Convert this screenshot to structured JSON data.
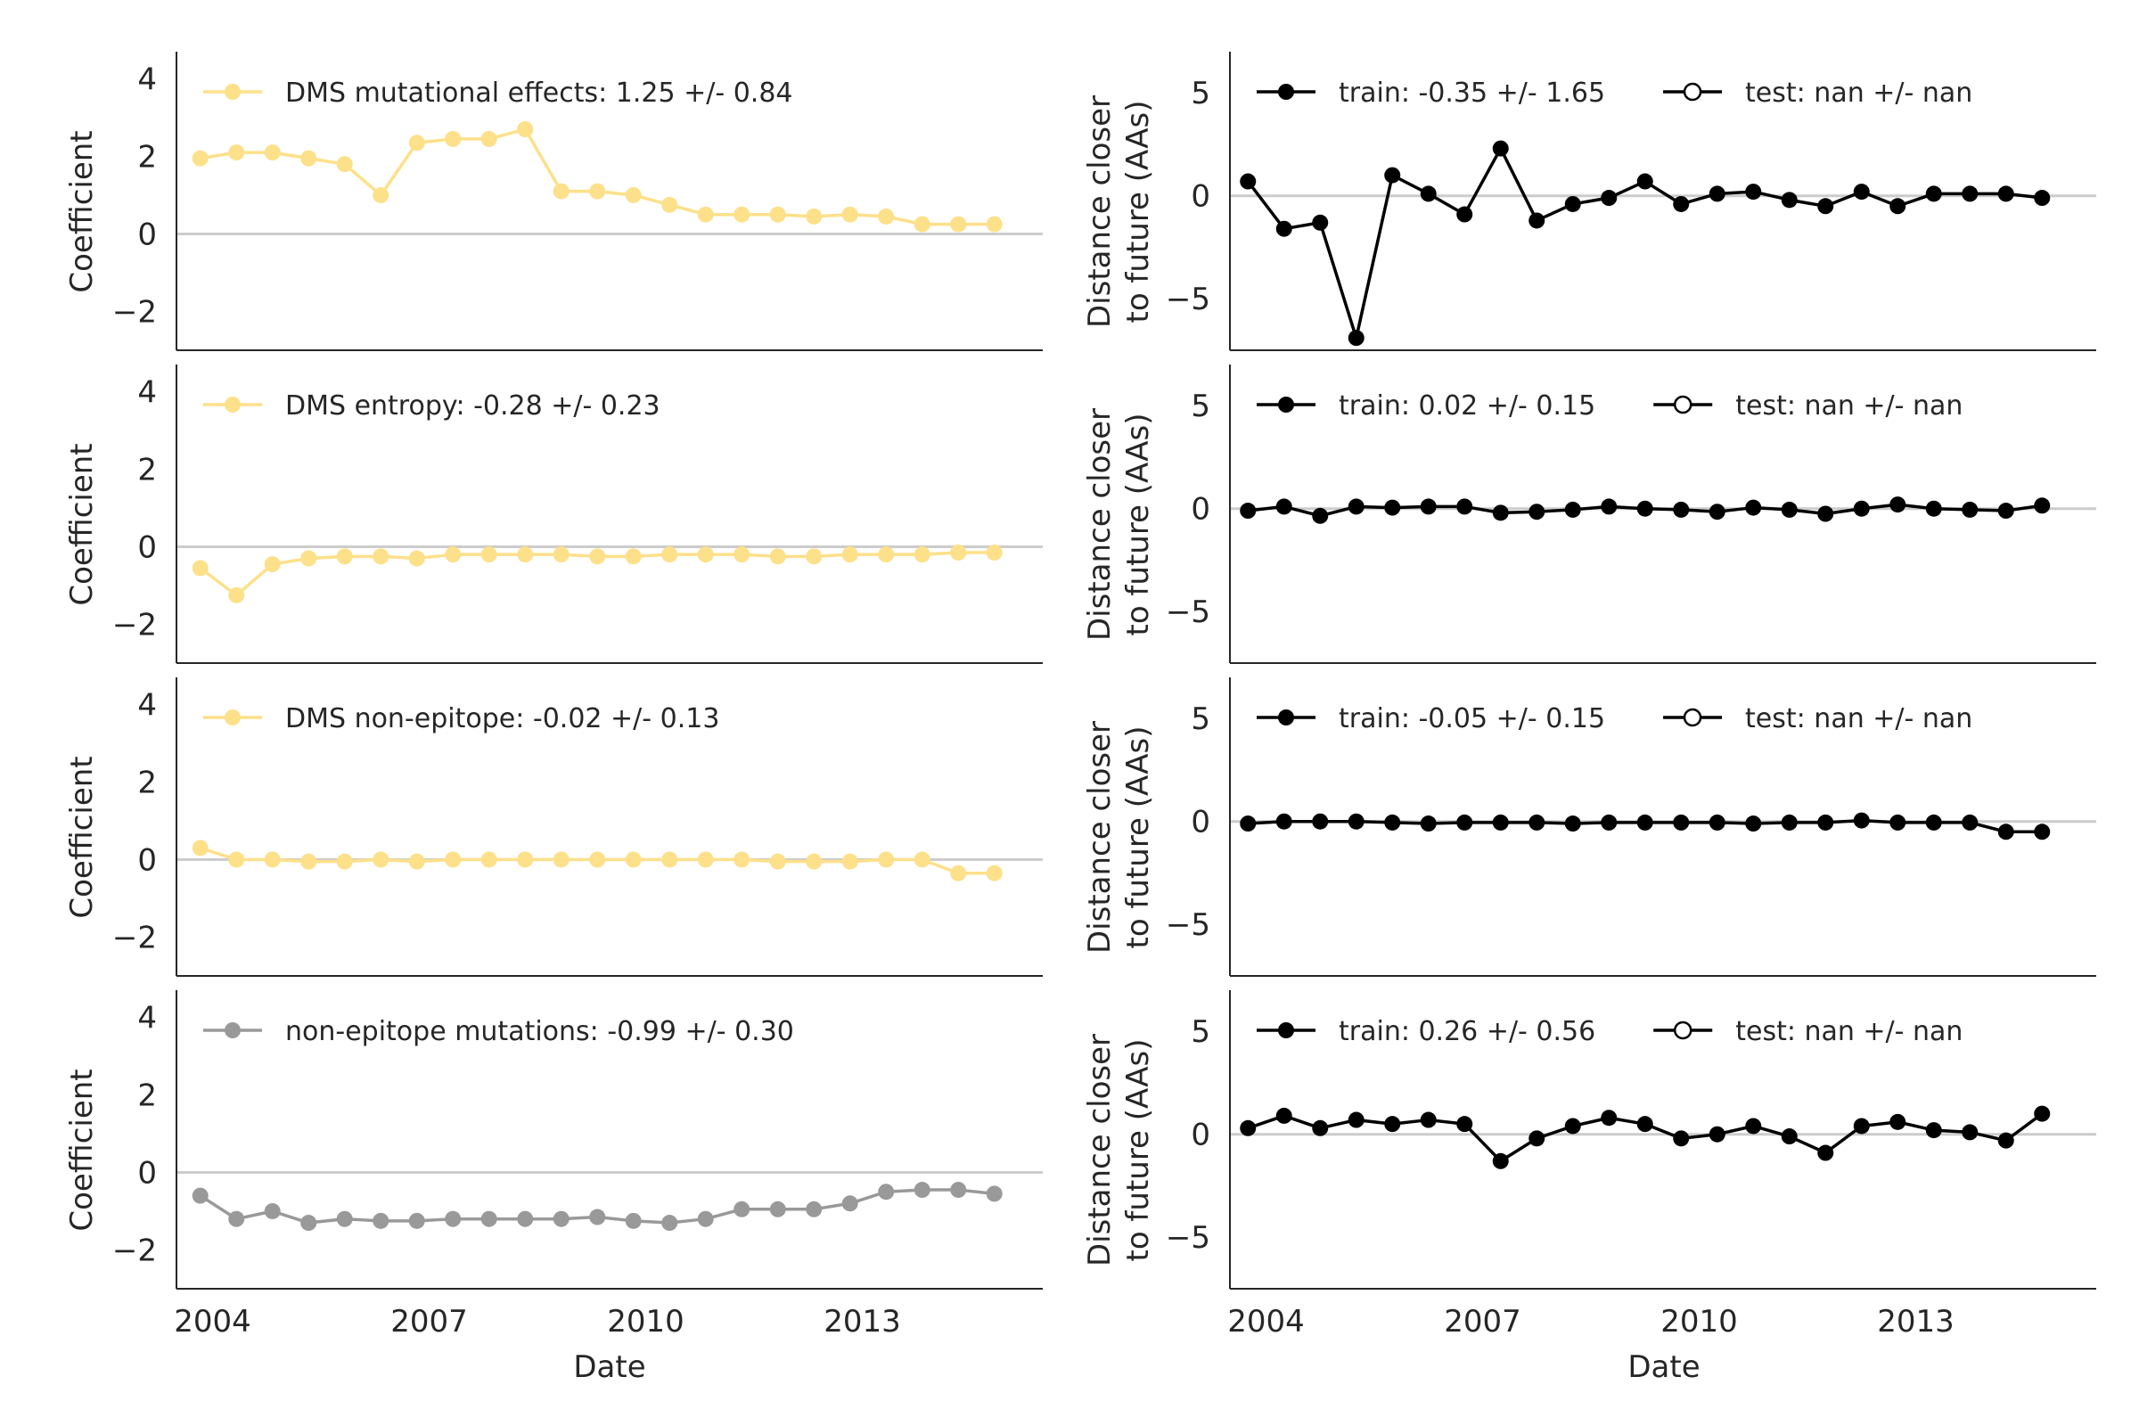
{
  "figure": {
    "xlabel": "Date",
    "coef_ylabel": "Coefficient",
    "dist_ylabel_line1": "Distance closer",
    "dist_ylabel_line2": "to future (AAs)"
  },
  "colors": {
    "dms": "#fde08a",
    "gray": "#999999",
    "black": "#000000",
    "zero_line": "#cccccc",
    "axis": "#262626"
  },
  "chart_data": [
    {
      "type": "line",
      "panel": "coefficient",
      "row": 0,
      "xlabel": "",
      "ylabel": "Coefficient",
      "ylim": [
        -3,
        4.7
      ],
      "yticks": [
        -2,
        0,
        2,
        4
      ],
      "xlim": [
        2003.5,
        2015.5
      ],
      "xticks": [
        2004,
        2007,
        2010,
        2013
      ],
      "grid": false,
      "legend_position": "top-left",
      "series": [
        {
          "name": "DMS mutational effects: 1.25 +/- 0.84",
          "color": "#fde08a",
          "marker": "filled",
          "x": [
            2003.83,
            2004.33,
            2004.83,
            2005.33,
            2005.83,
            2006.33,
            2006.83,
            2007.33,
            2007.83,
            2008.33,
            2008.83,
            2009.33,
            2009.83,
            2010.33,
            2010.83,
            2011.33,
            2011.83,
            2012.33,
            2012.83,
            2013.33,
            2013.83,
            2014.33,
            2014.83
          ],
          "y": [
            1.95,
            2.1,
            2.1,
            1.95,
            1.8,
            1.0,
            2.35,
            2.45,
            2.45,
            2.7,
            1.1,
            1.1,
            1.0,
            0.75,
            0.5,
            0.5,
            0.5,
            0.45,
            0.5,
            0.45,
            0.25,
            0.25,
            0.25
          ]
        }
      ]
    },
    {
      "type": "line",
      "panel": "coefficient",
      "row": 1,
      "xlabel": "",
      "ylabel": "Coefficient",
      "ylim": [
        -3,
        4.7
      ],
      "yticks": [
        -2,
        0,
        2,
        4
      ],
      "xlim": [
        2003.5,
        2015.5
      ],
      "xticks": [
        2004,
        2007,
        2010,
        2013
      ],
      "grid": false,
      "legend_position": "top-left",
      "series": [
        {
          "name": "DMS entropy: -0.28 +/- 0.23",
          "color": "#fde08a",
          "marker": "filled",
          "x": [
            2003.83,
            2004.33,
            2004.83,
            2005.33,
            2005.83,
            2006.33,
            2006.83,
            2007.33,
            2007.83,
            2008.33,
            2008.83,
            2009.33,
            2009.83,
            2010.33,
            2010.83,
            2011.33,
            2011.83,
            2012.33,
            2012.83,
            2013.33,
            2013.83,
            2014.33,
            2014.83
          ],
          "y": [
            -0.55,
            -1.25,
            -0.45,
            -0.3,
            -0.25,
            -0.25,
            -0.3,
            -0.2,
            -0.2,
            -0.2,
            -0.2,
            -0.25,
            -0.25,
            -0.2,
            -0.2,
            -0.2,
            -0.25,
            -0.25,
            -0.2,
            -0.2,
            -0.2,
            -0.15,
            -0.15
          ]
        }
      ]
    },
    {
      "type": "line",
      "panel": "coefficient",
      "row": 2,
      "xlabel": "",
      "ylabel": "Coefficient",
      "ylim": [
        -3,
        4.7
      ],
      "yticks": [
        -2,
        0,
        2,
        4
      ],
      "xlim": [
        2003.5,
        2015.5
      ],
      "xticks": [
        2004,
        2007,
        2010,
        2013
      ],
      "grid": false,
      "legend_position": "top-left",
      "series": [
        {
          "name": "DMS non-epitope: -0.02 +/- 0.13",
          "color": "#fde08a",
          "marker": "filled",
          "x": [
            2003.83,
            2004.33,
            2004.83,
            2005.33,
            2005.83,
            2006.33,
            2006.83,
            2007.33,
            2007.83,
            2008.33,
            2008.83,
            2009.33,
            2009.83,
            2010.33,
            2010.83,
            2011.33,
            2011.83,
            2012.33,
            2012.83,
            2013.33,
            2013.83,
            2014.33,
            2014.83
          ],
          "y": [
            0.3,
            0.0,
            0.0,
            -0.05,
            -0.05,
            0.0,
            -0.05,
            0.0,
            0.0,
            0.0,
            0.0,
            0.0,
            0.0,
            0.0,
            0.0,
            0.0,
            -0.05,
            -0.05,
            -0.05,
            0.0,
            0.0,
            -0.35,
            -0.35
          ]
        }
      ]
    },
    {
      "type": "line",
      "panel": "coefficient",
      "row": 3,
      "xlabel": "Date",
      "ylabel": "Coefficient",
      "ylim": [
        -3,
        4.7
      ],
      "yticks": [
        -2,
        0,
        2,
        4
      ],
      "xlim": [
        2003.5,
        2015.5
      ],
      "xticks": [
        2004,
        2007,
        2010,
        2013
      ],
      "grid": false,
      "legend_position": "top-left",
      "series": [
        {
          "name": "non-epitope mutations: -0.99 +/- 0.30",
          "color": "#999999",
          "marker": "filled",
          "x": [
            2003.83,
            2004.33,
            2004.83,
            2005.33,
            2005.83,
            2006.33,
            2006.83,
            2007.33,
            2007.83,
            2008.33,
            2008.83,
            2009.33,
            2009.83,
            2010.33,
            2010.83,
            2011.33,
            2011.83,
            2012.33,
            2012.83,
            2013.33,
            2013.83,
            2014.33,
            2014.83
          ],
          "y": [
            -0.6,
            -1.2,
            -1.0,
            -1.3,
            -1.2,
            -1.25,
            -1.25,
            -1.2,
            -1.2,
            -1.2,
            -1.2,
            -1.15,
            -1.25,
            -1.3,
            -1.2,
            -0.95,
            -0.95,
            -0.95,
            -0.8,
            -0.5,
            -0.45,
            -0.45,
            -0.55
          ]
        }
      ]
    },
    {
      "type": "line",
      "panel": "distance",
      "row": 0,
      "xlabel": "",
      "ylabel": "Distance closer to future (AAs)",
      "ylim": [
        -7.5,
        7
      ],
      "yticks": [
        -5,
        0,
        5
      ],
      "xlim": [
        2003.5,
        2015.5
      ],
      "xticks": [
        2004,
        2007,
        2010,
        2013
      ],
      "grid": false,
      "legend_position": "top-left",
      "series": [
        {
          "name": "train: -0.35 +/- 1.65",
          "color": "#000000",
          "marker": "filled",
          "x": [
            2003.75,
            2004.25,
            2004.75,
            2005.25,
            2005.75,
            2006.25,
            2006.75,
            2007.25,
            2007.75,
            2008.25,
            2008.75,
            2009.25,
            2009.75,
            2010.25,
            2010.75,
            2011.25,
            2011.75,
            2012.25,
            2012.75,
            2013.25,
            2013.75,
            2014.25,
            2014.75
          ],
          "y": [
            0.7,
            -1.6,
            -1.3,
            -6.9,
            1.0,
            0.1,
            -0.9,
            2.3,
            -1.2,
            -0.4,
            -0.1,
            0.7,
            -0.4,
            0.1,
            0.2,
            -0.2,
            -0.5,
            0.2,
            -0.5,
            0.1,
            0.1,
            0.1,
            -0.1
          ]
        },
        {
          "name": "test: nan +/- nan",
          "color": "#000000",
          "marker": "open",
          "x": [],
          "y": []
        }
      ]
    },
    {
      "type": "line",
      "panel": "distance",
      "row": 1,
      "xlabel": "",
      "ylabel": "Distance closer to future (AAs)",
      "ylim": [
        -7.5,
        7
      ],
      "yticks": [
        -5,
        0,
        5
      ],
      "xlim": [
        2003.5,
        2015.5
      ],
      "xticks": [
        2004,
        2007,
        2010,
        2013
      ],
      "grid": false,
      "legend_position": "top-left",
      "series": [
        {
          "name": "train: 0.02 +/- 0.15",
          "color": "#000000",
          "marker": "filled",
          "x": [
            2003.75,
            2004.25,
            2004.75,
            2005.25,
            2005.75,
            2006.25,
            2006.75,
            2007.25,
            2007.75,
            2008.25,
            2008.75,
            2009.25,
            2009.75,
            2010.25,
            2010.75,
            2011.25,
            2011.75,
            2012.25,
            2012.75,
            2013.25,
            2013.75,
            2014.25,
            2014.75
          ],
          "y": [
            -0.1,
            0.1,
            -0.35,
            0.1,
            0.05,
            0.1,
            0.1,
            -0.2,
            -0.15,
            -0.05,
            0.1,
            0.0,
            -0.05,
            -0.15,
            0.05,
            -0.05,
            -0.25,
            0.0,
            0.2,
            0.0,
            -0.05,
            -0.1,
            0.15
          ]
        },
        {
          "name": "test: nan +/- nan",
          "color": "#000000",
          "marker": "open",
          "x": [],
          "y": []
        }
      ]
    },
    {
      "type": "line",
      "panel": "distance",
      "row": 2,
      "xlabel": "",
      "ylabel": "Distance closer to future (AAs)",
      "ylim": [
        -7.5,
        7
      ],
      "yticks": [
        -5,
        0,
        5
      ],
      "xlim": [
        2003.5,
        2015.5
      ],
      "xticks": [
        2004,
        2007,
        2010,
        2013
      ],
      "grid": false,
      "legend_position": "top-left",
      "series": [
        {
          "name": "train: -0.05 +/- 0.15",
          "color": "#000000",
          "marker": "filled",
          "x": [
            2003.75,
            2004.25,
            2004.75,
            2005.25,
            2005.75,
            2006.25,
            2006.75,
            2007.25,
            2007.75,
            2008.25,
            2008.75,
            2009.25,
            2009.75,
            2010.25,
            2010.75,
            2011.25,
            2011.75,
            2012.25,
            2012.75,
            2013.25,
            2013.75,
            2014.25,
            2014.75
          ],
          "y": [
            -0.1,
            0.0,
            0.0,
            0.0,
            -0.05,
            -0.1,
            -0.05,
            -0.05,
            -0.05,
            -0.1,
            -0.05,
            -0.05,
            -0.05,
            -0.05,
            -0.1,
            -0.05,
            -0.05,
            0.05,
            -0.05,
            -0.05,
            -0.05,
            -0.5,
            -0.5
          ]
        },
        {
          "name": "test: nan +/- nan",
          "color": "#000000",
          "marker": "open",
          "x": [],
          "y": []
        }
      ]
    },
    {
      "type": "line",
      "panel": "distance",
      "row": 3,
      "xlabel": "Date",
      "ylabel": "Distance closer to future (AAs)",
      "ylim": [
        -7.5,
        7
      ],
      "yticks": [
        -5,
        0,
        5
      ],
      "xlim": [
        2003.5,
        2015.5
      ],
      "xticks": [
        2004,
        2007,
        2010,
        2013
      ],
      "grid": false,
      "legend_position": "top-left",
      "series": [
        {
          "name": "train: 0.26 +/- 0.56",
          "color": "#000000",
          "marker": "filled",
          "x": [
            2003.75,
            2004.25,
            2004.75,
            2005.25,
            2005.75,
            2006.25,
            2006.75,
            2007.25,
            2007.75,
            2008.25,
            2008.75,
            2009.25,
            2009.75,
            2010.25,
            2010.75,
            2011.25,
            2011.75,
            2012.25,
            2012.75,
            2013.25,
            2013.75,
            2014.25,
            2014.75
          ],
          "y": [
            0.3,
            0.9,
            0.3,
            0.7,
            0.5,
            0.7,
            0.5,
            -1.3,
            -0.2,
            0.4,
            0.8,
            0.5,
            -0.2,
            0.0,
            0.4,
            -0.1,
            -0.9,
            0.4,
            0.6,
            0.2,
            0.1,
            -0.3,
            1.0
          ]
        },
        {
          "name": "test: nan +/- nan",
          "color": "#000000",
          "marker": "open",
          "x": [],
          "y": []
        }
      ]
    }
  ]
}
